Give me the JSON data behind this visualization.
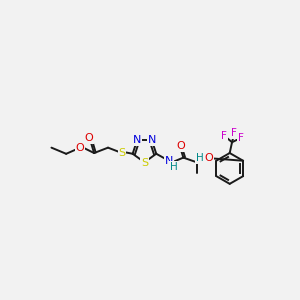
{
  "bg_color": "#f2f2f2",
  "bond_color": "#1a1a1a",
  "bond_width": 1.4,
  "atom_colors": {
    "S": "#cccc00",
    "N": "#0000dd",
    "O": "#dd0000",
    "F": "#cc00cc",
    "H": "#008888",
    "C": "#1a1a1a"
  },
  "figsize": [
    3.0,
    3.0
  ],
  "dpi": 100
}
